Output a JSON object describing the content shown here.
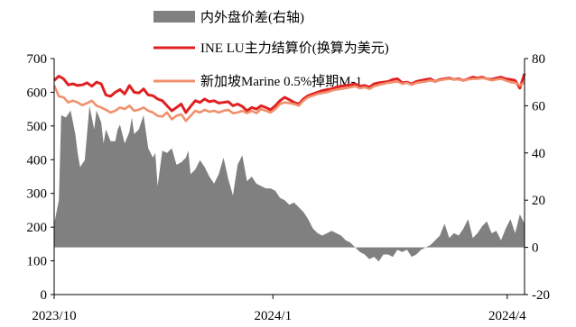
{
  "chart_data": {
    "type": "line",
    "left_axis": {
      "min": 0,
      "max": 700,
      "ticks": [
        0,
        100,
        200,
        300,
        400,
        500,
        600,
        700
      ]
    },
    "right_axis": {
      "min": -20,
      "max": 80,
      "ticks": [
        -20,
        0,
        20,
        40,
        60,
        80
      ]
    },
    "x_labels": [
      "2023/10",
      "2024/1",
      "2024/4"
    ],
    "x_label_positions": [
      0,
      0.4651,
      0.9632
    ],
    "grid": false,
    "legend_position": "top-center",
    "series": [
      {
        "name": "内外盘价差(右轴)",
        "type": "area",
        "axis": "right",
        "color": "#808080",
        "x": [
          0,
          0.01,
          0.015,
          0.025,
          0.035,
          0.045,
          0.05,
          0.055,
          0.065,
          0.075,
          0.085,
          0.09,
          0.1,
          0.105,
          0.11,
          0.12,
          0.13,
          0.135,
          0.14,
          0.15,
          0.16,
          0.165,
          0.17,
          0.18,
          0.19,
          0.2,
          0.21,
          0.215,
          0.22,
          0.23,
          0.24,
          0.25,
          0.26,
          0.27,
          0.28,
          0.285,
          0.29,
          0.3,
          0.31,
          0.32,
          0.33,
          0.34,
          0.35,
          0.36,
          0.37,
          0.38,
          0.39,
          0.4,
          0.41,
          0.42,
          0.43,
          0.44,
          0.45,
          0.46,
          0.47,
          0.48,
          0.49,
          0.5,
          0.51,
          0.52,
          0.53,
          0.54,
          0.55,
          0.56,
          0.57,
          0.58,
          0.59,
          0.6,
          0.61,
          0.62,
          0.63,
          0.64,
          0.65,
          0.66,
          0.67,
          0.68,
          0.69,
          0.7,
          0.71,
          0.72,
          0.73,
          0.74,
          0.75,
          0.76,
          0.77,
          0.78,
          0.79,
          0.8,
          0.81,
          0.82,
          0.83,
          0.84,
          0.85,
          0.86,
          0.87,
          0.88,
          0.89,
          0.9,
          0.91,
          0.92,
          0.93,
          0.94,
          0.95,
          0.96,
          0.97,
          0.98,
          0.99,
          1.0
        ],
        "values": [
          10,
          20,
          56,
          55,
          58,
          48,
          40,
          34,
          37,
          60,
          50,
          58,
          53,
          44,
          50,
          45,
          45,
          50,
          52,
          44,
          49,
          55,
          48,
          50,
          56,
          42,
          38,
          40,
          26,
          41,
          40,
          42,
          35,
          36,
          38,
          41,
          31,
          33,
          37,
          34,
          30,
          27,
          31,
          38,
          29,
          22,
          35,
          39,
          28,
          30,
          27,
          26,
          25,
          25,
          24,
          21,
          20,
          18,
          19,
          17,
          15,
          12,
          8,
          6,
          5,
          6,
          7,
          6,
          5,
          3,
          2,
          0,
          -2,
          -3,
          -5,
          -4,
          -6,
          -3,
          -3,
          -4,
          -1,
          -2,
          -1,
          -4,
          -3,
          -1,
          0,
          1,
          3,
          5,
          10,
          4,
          6,
          5,
          8,
          12,
          4,
          6,
          9,
          11,
          6,
          7,
          3,
          8,
          12,
          6,
          14,
          10
        ]
      },
      {
        "name": "INE LU主力结算价(换算为美元)",
        "type": "line",
        "axis": "left",
        "color": "#e02020",
        "x": [
          0,
          0.01,
          0.02,
          0.03,
          0.04,
          0.05,
          0.06,
          0.07,
          0.08,
          0.09,
          0.1,
          0.11,
          0.12,
          0.13,
          0.14,
          0.15,
          0.16,
          0.17,
          0.18,
          0.19,
          0.2,
          0.21,
          0.22,
          0.23,
          0.24,
          0.25,
          0.26,
          0.27,
          0.28,
          0.29,
          0.3,
          0.31,
          0.32,
          0.33,
          0.34,
          0.35,
          0.36,
          0.37,
          0.38,
          0.39,
          0.4,
          0.41,
          0.42,
          0.43,
          0.44,
          0.45,
          0.46,
          0.47,
          0.48,
          0.49,
          0.5,
          0.51,
          0.52,
          0.53,
          0.54,
          0.55,
          0.56,
          0.57,
          0.58,
          0.59,
          0.6,
          0.61,
          0.62,
          0.63,
          0.64,
          0.65,
          0.66,
          0.67,
          0.68,
          0.69,
          0.7,
          0.71,
          0.72,
          0.73,
          0.74,
          0.75,
          0.76,
          0.77,
          0.78,
          0.79,
          0.8,
          0.81,
          0.82,
          0.83,
          0.84,
          0.85,
          0.86,
          0.87,
          0.88,
          0.89,
          0.9,
          0.91,
          0.92,
          0.93,
          0.94,
          0.95,
          0.96,
          0.97,
          0.98,
          0.99,
          1.0
        ],
        "values": [
          635,
          648,
          640,
          622,
          625,
          620,
          622,
          628,
          618,
          630,
          625,
          592,
          588,
          600,
          608,
          595,
          620,
          600,
          598,
          610,
          592,
          590,
          580,
          575,
          560,
          545,
          555,
          565,
          540,
          558,
          575,
          570,
          580,
          572,
          575,
          568,
          570,
          572,
          560,
          565,
          558,
          545,
          555,
          550,
          560,
          555,
          548,
          560,
          575,
          585,
          578,
          570,
          565,
          580,
          590,
          595,
          600,
          605,
          608,
          610,
          615,
          618,
          620,
          622,
          625,
          618,
          620,
          615,
          625,
          628,
          630,
          632,
          638,
          640,
          628,
          630,
          625,
          632,
          635,
          638,
          640,
          632,
          638,
          640,
          642,
          638,
          640,
          635,
          640,
          645,
          642,
          645,
          640,
          638,
          642,
          645,
          640,
          638,
          635,
          612,
          655
        ]
      },
      {
        "name": "新加坡Marine 0.5%掉期M-1",
        "type": "line",
        "axis": "left",
        "color": "#f0906c",
        "x": [
          0,
          0.01,
          0.02,
          0.03,
          0.04,
          0.05,
          0.06,
          0.07,
          0.08,
          0.09,
          0.1,
          0.11,
          0.12,
          0.13,
          0.14,
          0.15,
          0.16,
          0.17,
          0.18,
          0.19,
          0.2,
          0.21,
          0.22,
          0.23,
          0.24,
          0.25,
          0.26,
          0.27,
          0.28,
          0.29,
          0.3,
          0.31,
          0.32,
          0.33,
          0.34,
          0.35,
          0.36,
          0.37,
          0.38,
          0.39,
          0.4,
          0.41,
          0.42,
          0.43,
          0.44,
          0.45,
          0.46,
          0.47,
          0.48,
          0.49,
          0.5,
          0.51,
          0.52,
          0.53,
          0.54,
          0.55,
          0.56,
          0.57,
          0.58,
          0.59,
          0.6,
          0.61,
          0.62,
          0.63,
          0.64,
          0.65,
          0.66,
          0.67,
          0.68,
          0.69,
          0.7,
          0.71,
          0.72,
          0.73,
          0.74,
          0.75,
          0.76,
          0.77,
          0.78,
          0.79,
          0.8,
          0.81,
          0.82,
          0.83,
          0.84,
          0.85,
          0.86,
          0.87,
          0.88,
          0.89,
          0.9,
          0.91,
          0.92,
          0.93,
          0.94,
          0.95,
          0.96,
          0.97,
          0.98,
          0.99,
          1.0
        ],
        "values": [
          620,
          588,
          585,
          570,
          575,
          570,
          562,
          568,
          575,
          560,
          555,
          548,
          540,
          545,
          555,
          550,
          560,
          545,
          548,
          555,
          545,
          540,
          530,
          528,
          540,
          520,
          530,
          535,
          515,
          530,
          545,
          540,
          548,
          542,
          545,
          540,
          545,
          548,
          538,
          540,
          545,
          538,
          545,
          538,
          550,
          545,
          540,
          550,
          565,
          570,
          568,
          565,
          560,
          575,
          585,
          590,
          595,
          598,
          600,
          605,
          608,
          610,
          612,
          615,
          618,
          612,
          615,
          610,
          618,
          622,
          625,
          628,
          630,
          632,
          625,
          628,
          622,
          628,
          630,
          632,
          635,
          632,
          636,
          638,
          640,
          638,
          638,
          635,
          638,
          640,
          640,
          642,
          640,
          635,
          638,
          640,
          635,
          630,
          628,
          620,
          630
        ]
      }
    ]
  }
}
